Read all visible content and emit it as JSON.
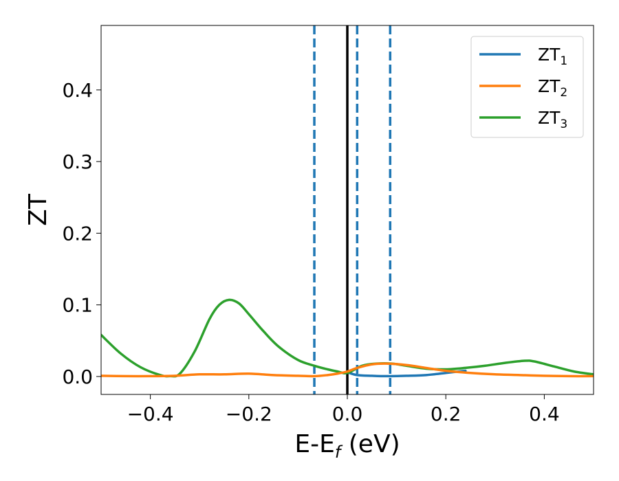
{
  "chart_data": {
    "type": "line",
    "xlabel": {
      "main": "E-E",
      "sub": "f",
      "suffix": " (eV)"
    },
    "ylabel": "ZT",
    "xlim": [
      -0.5,
      0.5
    ],
    "ylim": [
      -0.025,
      0.49
    ],
    "xticks": [
      -0.4,
      -0.2,
      0.0,
      0.2,
      0.4
    ],
    "xtick_labels": [
      "−0.4",
      "−0.2",
      "0.0",
      "0.2",
      "0.4"
    ],
    "yticks": [
      0.0,
      0.1,
      0.2,
      0.3,
      0.4
    ],
    "ytick_labels": [
      "0.0",
      "0.1",
      "0.2",
      "0.3",
      "0.4"
    ],
    "grid": false,
    "legend_position": "top-right",
    "vertical_lines": [
      {
        "x": -0.067,
        "style": "dashed",
        "color": "#1f77b4"
      },
      {
        "x": 0.0,
        "style": "solid",
        "color": "#000000"
      },
      {
        "x": 0.02,
        "style": "dashed",
        "color": "#1f77b4"
      },
      {
        "x": 0.087,
        "style": "dashed",
        "color": "#1f77b4"
      }
    ],
    "series": [
      {
        "name": "ZT",
        "subscript": "1",
        "color": "#1f77b4",
        "x": [
          0.0,
          0.02,
          0.05,
          0.08,
          0.12,
          0.16,
          0.2,
          0.24
        ],
        "y": [
          0.006,
          0.002,
          0.001,
          0.0005,
          0.001,
          0.002,
          0.005,
          0.008
        ]
      },
      {
        "name": "ZT",
        "subscript": "2",
        "color": "#ff7f0e",
        "x": [
          -0.5,
          -0.45,
          -0.4,
          -0.35,
          -0.3,
          -0.25,
          -0.2,
          -0.15,
          -0.1,
          -0.067,
          -0.04,
          -0.02,
          0.0,
          0.02,
          0.05,
          0.08,
          0.12,
          0.16,
          0.2,
          0.25,
          0.3,
          0.35,
          0.4,
          0.45,
          0.5
        ],
        "y": [
          0.001,
          0.0005,
          0.0005,
          0.001,
          0.003,
          0.003,
          0.004,
          0.002,
          0.001,
          0.0005,
          0.002,
          0.004,
          0.007,
          0.012,
          0.017,
          0.018,
          0.016,
          0.012,
          0.008,
          0.005,
          0.003,
          0.002,
          0.001,
          0.0005,
          0.0005
        ]
      },
      {
        "name": "ZT",
        "subscript": "3",
        "color": "#2ca02c",
        "x": [
          -0.5,
          -0.46,
          -0.42,
          -0.38,
          -0.36,
          -0.34,
          -0.31,
          -0.28,
          -0.26,
          -0.24,
          -0.22,
          -0.2,
          -0.17,
          -0.14,
          -0.1,
          -0.067,
          -0.04,
          -0.02,
          0.0,
          0.03,
          0.06,
          0.09,
          0.12,
          0.16,
          0.2,
          0.24,
          0.28,
          0.32,
          0.36,
          0.38,
          0.42,
          0.46,
          0.5
        ],
        "y": [
          0.058,
          0.032,
          0.013,
          0.002,
          0.0005,
          0.004,
          0.035,
          0.08,
          0.1,
          0.107,
          0.102,
          0.087,
          0.063,
          0.042,
          0.023,
          0.015,
          0.01,
          0.007,
          0.005,
          0.015,
          0.018,
          0.018,
          0.015,
          0.011,
          0.01,
          0.012,
          0.015,
          0.019,
          0.022,
          0.021,
          0.014,
          0.007,
          0.003
        ]
      }
    ]
  }
}
